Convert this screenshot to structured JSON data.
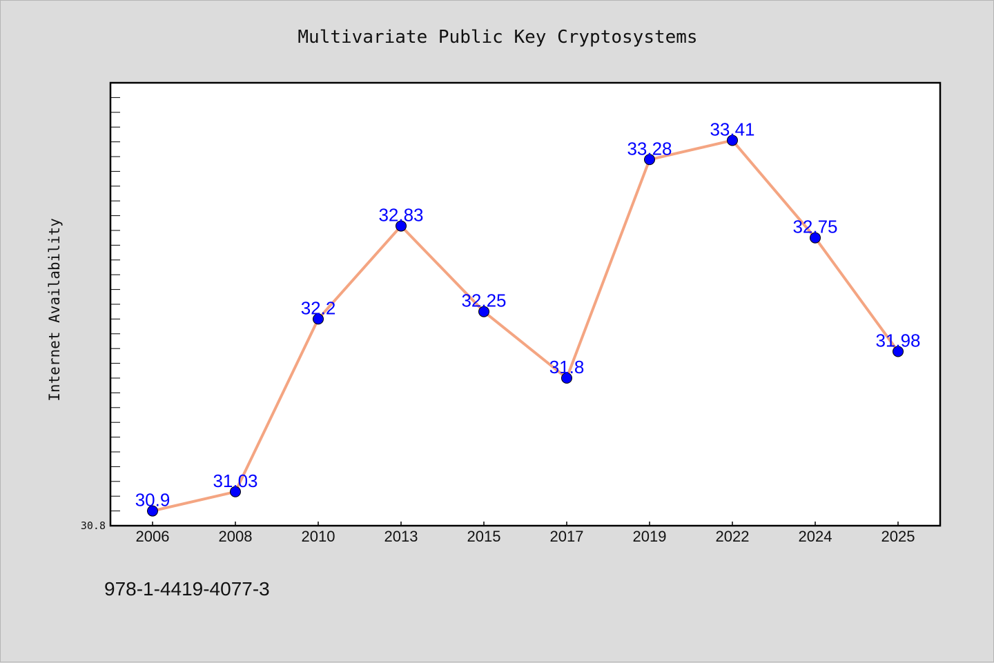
{
  "chart_data": {
    "type": "line",
    "title": "Multivariate Public Key Cryptosystems",
    "xlabel": "",
    "ylabel": "Internet Availability",
    "categories": [
      "2006",
      "2008",
      "2010",
      "2013",
      "2015",
      "2017",
      "2019",
      "2022",
      "2024",
      "2025"
    ],
    "series": [
      {
        "values": [
          30.9,
          31.03,
          32.2,
          32.83,
          32.25,
          31.8,
          33.28,
          33.41,
          32.75,
          31.98
        ],
        "data_labels": [
          "30.9",
          "31.03",
          "32.2",
          "32.83",
          "32.25",
          "31.8",
          "33.28",
          "33.41",
          "32.75",
          "31.98"
        ]
      }
    ],
    "ylim": [
      30.8,
      33.8
    ],
    "y_tick_label": "30.8",
    "y_minor_tick_step": 0.1,
    "grid": false,
    "line_color": "#f4a582",
    "marker_color": "#0000ff",
    "label_color": "#0000ff",
    "plot_background": "#ffffff",
    "figure_background": "#dcdcdc"
  },
  "footer_text": "978-1-4419-4077-3"
}
